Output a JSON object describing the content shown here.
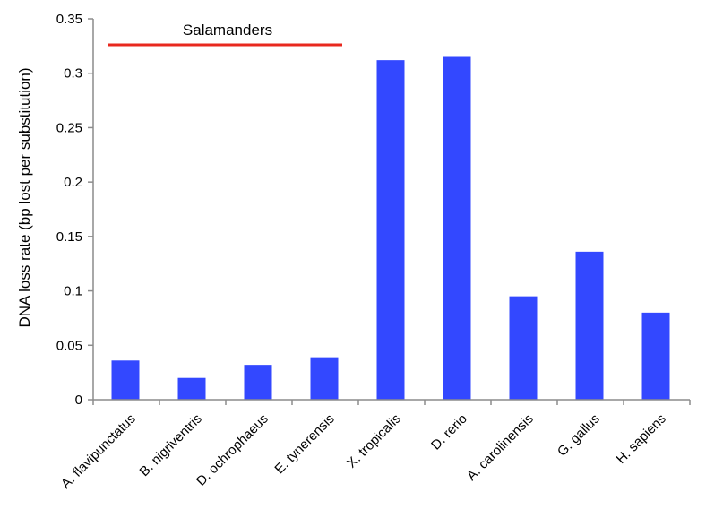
{
  "chart_data": {
    "type": "bar",
    "title": "",
    "xlabel": "",
    "ylabel": "DNA loss rate (bp lost per substitution)",
    "ylim": [
      0,
      0.35
    ],
    "yticks": [
      0,
      0.05,
      0.1,
      0.15,
      0.2,
      0.25,
      0.3,
      0.35
    ],
    "ytick_labels": [
      "0",
      "0.05",
      "0.1",
      "0.15",
      "0.2",
      "0.25",
      "0.3",
      "0.35"
    ],
    "grid": false,
    "categories": [
      "A. flavipunctatus",
      "B. nigriventris",
      "D. ochrophaeus",
      "E. tynerensis",
      "X. tropicalis",
      "D. rerio",
      "A. carolinensis",
      "G. gallus",
      "H. sapiens"
    ],
    "values": [
      0.036,
      0.02,
      0.032,
      0.039,
      0.312,
      0.315,
      0.095,
      0.136,
      0.08
    ],
    "bar_color": "#3348ff",
    "annotation": {
      "text": "Salamanders",
      "line_color": "#e8281e",
      "spans_categories": [
        "A. flavipunctatus",
        "E. tynerensis"
      ]
    }
  }
}
